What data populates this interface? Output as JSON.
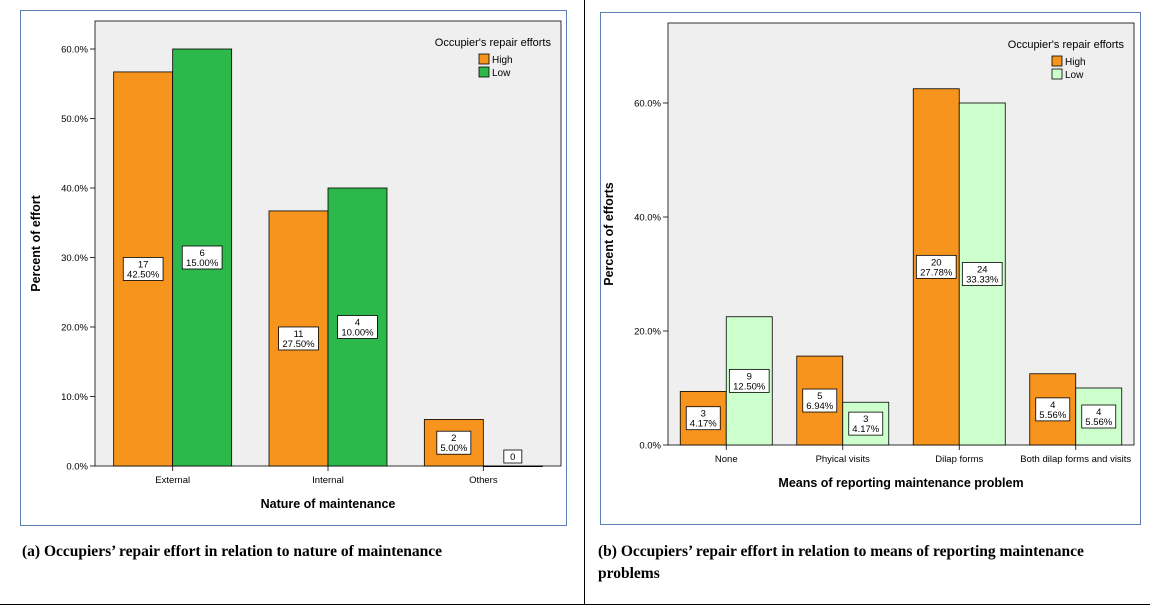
{
  "chart_data": [
    {
      "type": "bar",
      "title": "",
      "legend_title": "Occupier's repair efforts",
      "legend_position": "top-right",
      "xlabel": "Nature of maintenance",
      "ylabel": "Percent of effort",
      "ylim": [
        0,
        60
      ],
      "yticks": [
        "0.0%",
        "10.0%",
        "20.0%",
        "30.0%",
        "40.0%",
        "50.0%",
        "60.0%"
      ],
      "categories": [
        "External",
        "Internal",
        "Others"
      ],
      "series": [
        {
          "name": "High",
          "color": "#f7941d",
          "values": [
            56.7,
            36.7,
            6.7
          ],
          "counts": [
            "17",
            "11",
            "2"
          ],
          "labels": [
            "42.50%",
            "27.50%",
            "5.00%"
          ]
        },
        {
          "name": "Low",
          "color": "#2db84b",
          "values": [
            60.0,
            40.0,
            0.0
          ],
          "counts": [
            "6",
            "4",
            "0"
          ],
          "labels": [
            "15.00%",
            "10.00%",
            ""
          ]
        }
      ],
      "grid": false
    },
    {
      "type": "bar",
      "title": "",
      "legend_title": "Occupier's repair efforts",
      "legend_position": "top-right",
      "xlabel": "Means of reporting maintenance problem",
      "ylabel": "Percent of efforts",
      "ylim": [
        0,
        60
      ],
      "yticks": [
        "0.0%",
        "20.0%",
        "40.0%",
        "60.0%"
      ],
      "categories": [
        "None",
        "Phyical visits",
        "Dilap forms",
        "Both dilap forms and visits"
      ],
      "series": [
        {
          "name": "High",
          "color": "#f7941d",
          "values": [
            9.4,
            15.6,
            62.5,
            12.5
          ],
          "counts": [
            "3",
            "5",
            "20",
            "4"
          ],
          "labels": [
            "4.17%",
            "6.94%",
            "27.78%",
            "5.56%"
          ]
        },
        {
          "name": "Low",
          "color": "#ccffcc",
          "values": [
            22.5,
            7.5,
            60.0,
            10.0
          ],
          "counts": [
            "9",
            "3",
            "24",
            "4"
          ],
          "labels": [
            "12.50%",
            "4.17%",
            "33.33%",
            "5.56%"
          ]
        }
      ],
      "grid": false
    }
  ],
  "captions": {
    "a": "(a) Occupiers’ repair effort in relation to nature of maintenance",
    "b": "(b) Occupiers’ repair effort in relation to means of reporting maintenance problems"
  }
}
